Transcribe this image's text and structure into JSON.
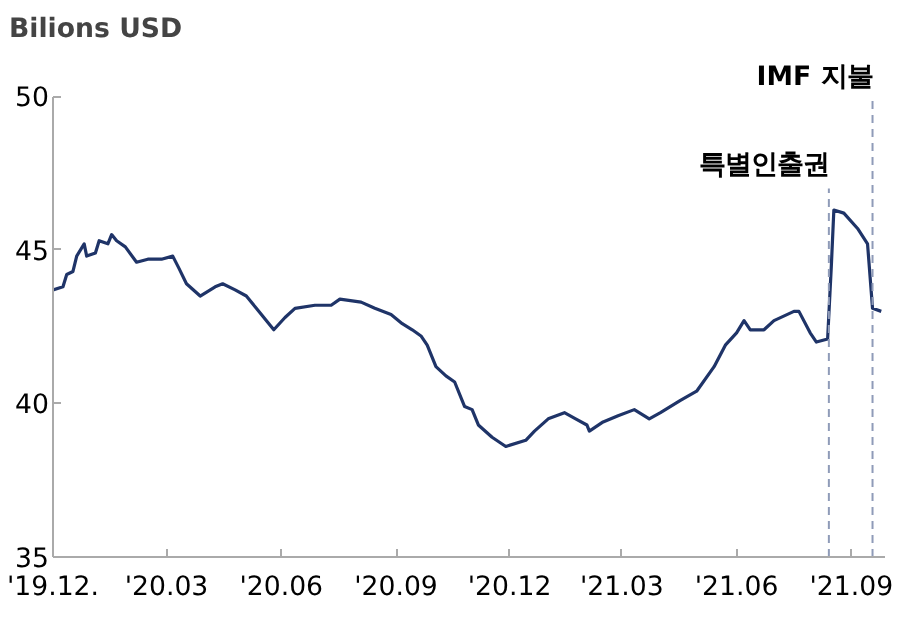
{
  "chart_data": {
    "type": "line",
    "ylabel": "Bilions USD",
    "x": [
      "2019-12-01",
      "2019-12-09",
      "2019-12-12",
      "2019-12-17",
      "2019-12-20",
      "2019-12-26",
      "2019-12-28",
      "2020-01-04",
      "2020-01-07",
      "2020-01-14",
      "2020-01-17",
      "2020-01-21",
      "2020-01-28",
      "2020-02-06",
      "2020-02-15",
      "2020-02-26",
      "2020-03-06",
      "2020-03-11",
      "2020-03-17",
      "2020-03-28",
      "2020-04-09",
      "2020-04-15",
      "2020-04-25",
      "2020-05-04",
      "2020-05-12",
      "2020-05-26",
      "2020-06-04",
      "2020-06-12",
      "2020-06-28",
      "2020-07-11",
      "2020-07-18",
      "2020-08-04",
      "2020-08-15",
      "2020-08-28",
      "2020-09-06",
      "2020-09-14",
      "2020-09-21",
      "2020-09-26",
      "2020-10-03",
      "2020-10-11",
      "2020-10-18",
      "2020-10-26",
      "2020-11-01",
      "2020-11-06",
      "2020-11-17",
      "2020-11-28",
      "2020-12-14",
      "2020-12-21",
      "2021-01-01",
      "2021-01-14",
      "2021-01-23",
      "2021-02-01",
      "2021-02-03",
      "2021-02-14",
      "2021-02-26",
      "2021-03-11",
      "2021-03-23",
      "2021-04-01",
      "2021-04-17",
      "2021-04-30",
      "2021-05-14",
      "2021-05-23",
      "2021-06-01",
      "2021-06-07",
      "2021-06-12",
      "2021-06-23",
      "2021-07-01",
      "2021-07-17",
      "2021-07-21",
      "2021-07-30",
      "2021-08-04",
      "2021-08-13",
      "2021-08-16",
      "2021-08-18",
      "2021-08-26",
      "2021-09-06",
      "2021-09-14",
      "2021-09-18",
      "2021-09-25"
    ],
    "series": [
      {
        "color": "#1f3468",
        "values": [
          43.7,
          43.8,
          44.2,
          44.3,
          44.8,
          45.2,
          44.8,
          44.9,
          45.3,
          45.2,
          45.5,
          45.3,
          45.1,
          44.6,
          44.7,
          44.7,
          44.8,
          44.4,
          43.9,
          43.5,
          43.8,
          43.9,
          43.7,
          43.5,
          43.1,
          42.4,
          42.8,
          43.1,
          43.2,
          43.2,
          43.4,
          43.3,
          43.1,
          42.9,
          42.6,
          42.4,
          42.2,
          41.9,
          41.2,
          40.9,
          40.7,
          39.9,
          39.8,
          39.3,
          38.9,
          38.6,
          38.8,
          39.1,
          39.5,
          39.7,
          39.5,
          39.3,
          39.1,
          39.4,
          39.6,
          39.8,
          39.5,
          39.7,
          40.1,
          40.4,
          41.2,
          41.9,
          42.3,
          42.7,
          42.4,
          42.4,
          42.7,
          43.0,
          43.0,
          42.3,
          42.0,
          42.1,
          44.5,
          46.3,
          46.2,
          45.7,
          45.2,
          43.1,
          43.0
        ]
      }
    ],
    "xlim": [
      "2019-12-01",
      "2021-09-28"
    ],
    "xticks": [
      {
        "value": "2019-12-01",
        "label": "'19.12."
      },
      {
        "value": "2020-03-01",
        "label": "'20.03"
      },
      {
        "value": "2020-06-01",
        "label": "'20.06"
      },
      {
        "value": "2020-09-01",
        "label": "'20.09"
      },
      {
        "value": "2020-12-01",
        "label": "'20.12"
      },
      {
        "value": "2021-03-01",
        "label": "'21.03"
      },
      {
        "value": "2021-06-01",
        "label": "'21.06"
      },
      {
        "value": "2021-09-01",
        "label": "'21.09"
      }
    ],
    "ylim": [
      35,
      50
    ],
    "yticks": [
      35,
      40,
      45,
      50
    ],
    "ref_lines": [
      {
        "axis": "x",
        "value": "2021-08-14",
        "label": "특별인출권",
        "color": "#8f9bb8",
        "line_style": "dashed"
      },
      {
        "axis": "x",
        "value": "2021-09-18",
        "label": "IMF 지불",
        "color": "#8f9bb8",
        "line_style": "dashed"
      }
    ],
    "grid": false,
    "marker": "none",
    "line_style": "solid"
  }
}
